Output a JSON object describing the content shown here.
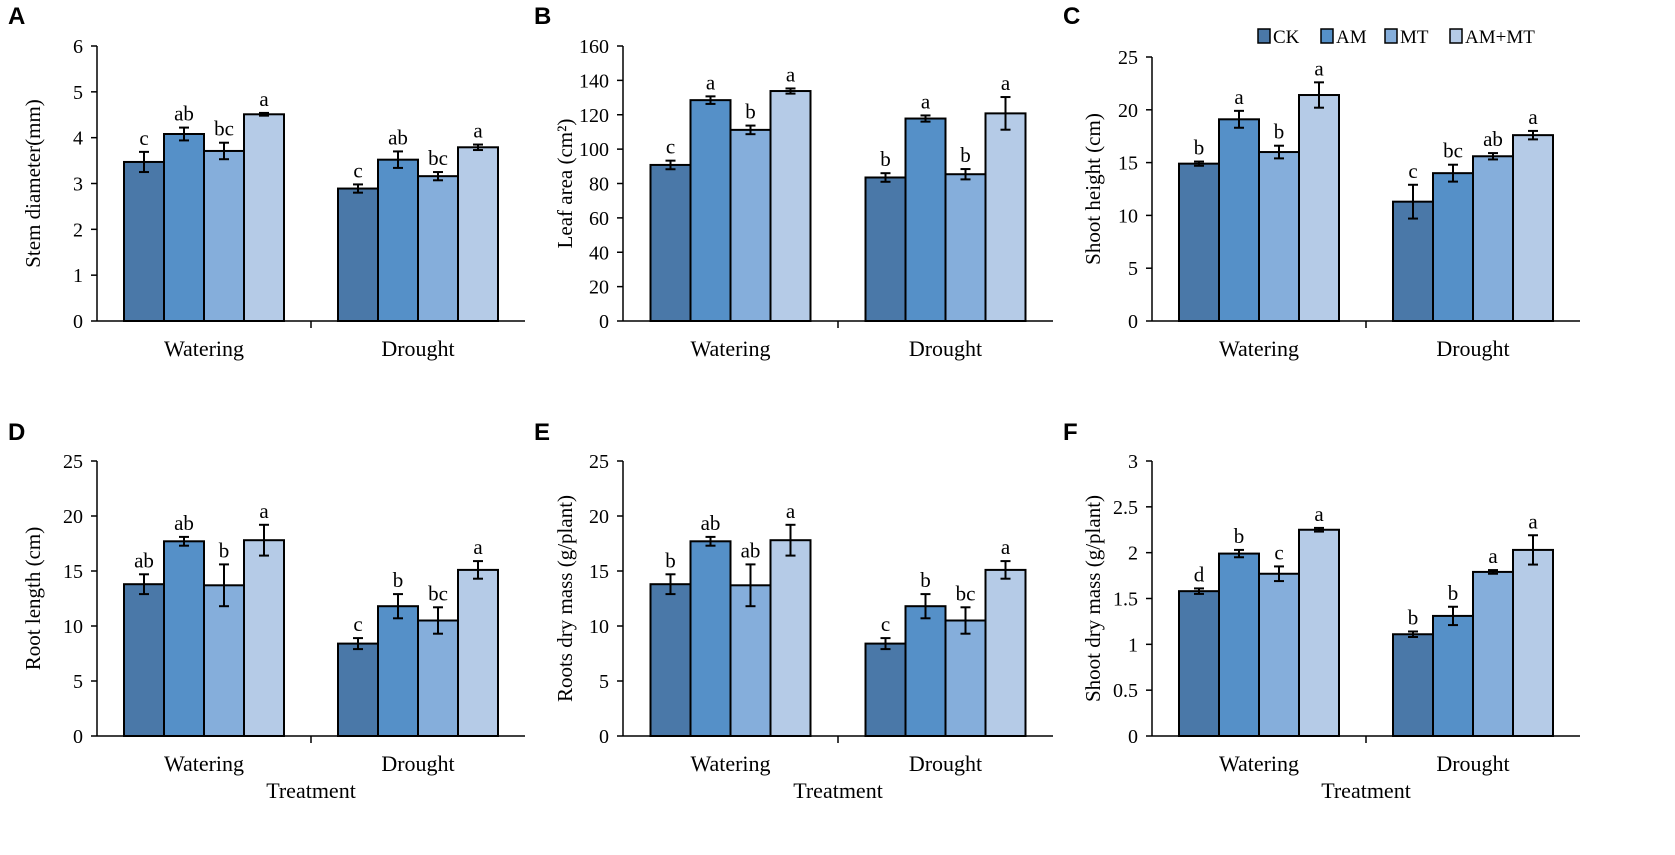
{
  "series_colors": [
    "#4a78a8",
    "#5590c8",
    "#85aedb",
    "#b5cbe7"
  ],
  "legend": {
    "items": [
      "CK",
      "AM",
      "MT",
      "AM+MT"
    ]
  },
  "chart_data": [
    {
      "type": "bar",
      "panel": "A",
      "title": "",
      "ylabel": "Stem diameter(mm)",
      "xlabel": "",
      "ylim": [
        0,
        6
      ],
      "yticks": [
        0,
        1,
        2,
        3,
        4,
        5,
        6
      ],
      "categories": [
        "Watering",
        "Drought"
      ],
      "series": [
        {
          "name": "CK",
          "values": [
            3.47,
            2.89
          ],
          "errors": [
            0.22,
            0.09
          ],
          "letters": [
            "c",
            "c"
          ]
        },
        {
          "name": "AM",
          "values": [
            4.08,
            3.52
          ],
          "errors": [
            0.14,
            0.18
          ],
          "letters": [
            "ab",
            "ab"
          ]
        },
        {
          "name": "MT",
          "values": [
            3.71,
            3.16
          ],
          "errors": [
            0.18,
            0.09
          ],
          "letters": [
            "bc",
            "bc"
          ]
        },
        {
          "name": "AM+MT",
          "values": [
            4.51,
            3.79
          ],
          "errors": [
            0.03,
            0.06
          ],
          "letters": [
            "a",
            "a"
          ]
        }
      ]
    },
    {
      "type": "bar",
      "panel": "B",
      "title": "",
      "ylabel": "Leaf area (cm²)",
      "xlabel": "",
      "ylim": [
        0,
        160
      ],
      "yticks": [
        0,
        20,
        40,
        60,
        80,
        100,
        120,
        140,
        160
      ],
      "categories": [
        "Watering",
        "Drought"
      ],
      "series": [
        {
          "name": "CK",
          "values": [
            90.8,
            83.5
          ],
          "errors": [
            2.5,
            2.5
          ],
          "letters": [
            "c",
            "b"
          ]
        },
        {
          "name": "AM",
          "values": [
            128.5,
            117.8
          ],
          "errors": [
            2.2,
            1.8
          ],
          "letters": [
            "a",
            "a"
          ]
        },
        {
          "name": "MT",
          "values": [
            111.2,
            85.4
          ],
          "errors": [
            2.5,
            3.0
          ],
          "letters": [
            "b",
            "b"
          ]
        },
        {
          "name": "AM+MT",
          "values": [
            133.8,
            120.8
          ],
          "errors": [
            1.5,
            9.5
          ],
          "letters": [
            "a",
            "a"
          ]
        }
      ]
    },
    {
      "type": "bar",
      "panel": "C",
      "title": "",
      "ylabel": "Shoot height (cm)",
      "xlabel": "",
      "ylim": [
        0,
        25
      ],
      "yticks": [
        0,
        5,
        10,
        15,
        20,
        25
      ],
      "categories": [
        "Watering",
        "Drought"
      ],
      "series": [
        {
          "name": "CK",
          "values": [
            14.9,
            11.3
          ],
          "errors": [
            0.2,
            1.6
          ],
          "letters": [
            "b",
            "c"
          ]
        },
        {
          "name": "AM",
          "values": [
            19.1,
            14.0
          ],
          "errors": [
            0.8,
            0.8
          ],
          "letters": [
            "a",
            "bc"
          ]
        },
        {
          "name": "MT",
          "values": [
            16.0,
            15.6
          ],
          "errors": [
            0.6,
            0.3
          ],
          "letters": [
            "b",
            "ab"
          ]
        },
        {
          "name": "AM+MT",
          "values": [
            21.4,
            17.6
          ],
          "errors": [
            1.2,
            0.4
          ],
          "letters": [
            "a",
            "a"
          ]
        }
      ]
    },
    {
      "type": "bar",
      "panel": "D",
      "title": "",
      "ylabel": "Root length (cm)",
      "xlabel": "Treatment",
      "ylim": [
        0,
        25
      ],
      "yticks": [
        0,
        5,
        10,
        15,
        20,
        25
      ],
      "categories": [
        "Watering",
        "Drought"
      ],
      "series": [
        {
          "name": "CK",
          "values": [
            13.8,
            8.4
          ],
          "errors": [
            0.9,
            0.5
          ],
          "letters": [
            "ab",
            "c"
          ]
        },
        {
          "name": "AM",
          "values": [
            17.7,
            11.8
          ],
          "errors": [
            0.4,
            1.1
          ],
          "letters": [
            "ab",
            "b"
          ]
        },
        {
          "name": "MT",
          "values": [
            13.7,
            10.5
          ],
          "errors": [
            1.9,
            1.2
          ],
          "letters": [
            "b",
            "bc"
          ]
        },
        {
          "name": "AM+MT",
          "values": [
            17.8,
            15.1
          ],
          "errors": [
            1.4,
            0.8
          ],
          "letters": [
            "a",
            "a"
          ]
        }
      ]
    },
    {
      "type": "bar",
      "panel": "E",
      "title": "",
      "ylabel": "Roots dry mass (g/plant)",
      "xlabel": "Treatment",
      "ylim": [
        0,
        25
      ],
      "yticks": [
        0,
        5,
        10,
        15,
        20,
        25
      ],
      "categories": [
        "Watering",
        "Drought"
      ],
      "series": [
        {
          "name": "CK",
          "values": [
            13.8,
            8.4
          ],
          "errors": [
            0.9,
            0.5
          ],
          "letters": [
            "b",
            "c"
          ]
        },
        {
          "name": "AM",
          "values": [
            17.7,
            11.8
          ],
          "errors": [
            0.4,
            1.1
          ],
          "letters": [
            "ab",
            "b"
          ]
        },
        {
          "name": "MT",
          "values": [
            13.7,
            10.5
          ],
          "errors": [
            1.9,
            1.2
          ],
          "letters": [
            "ab",
            "bc"
          ]
        },
        {
          "name": "AM+MT",
          "values": [
            17.8,
            15.1
          ],
          "errors": [
            1.4,
            0.8
          ],
          "letters": [
            "a",
            "a"
          ]
        }
      ]
    },
    {
      "type": "bar",
      "panel": "F",
      "title": "",
      "ylabel": "Shoot dry mass (g/plant)",
      "xlabel": "Treatment",
      "ylim": [
        0,
        3
      ],
      "yticks": [
        0,
        0.5,
        1,
        1.5,
        2,
        2.5,
        3
      ],
      "categories": [
        "Watering",
        "Drought"
      ],
      "series": [
        {
          "name": "CK",
          "values": [
            1.58,
            1.11
          ],
          "errors": [
            0.03,
            0.03
          ],
          "letters": [
            "d",
            "b"
          ]
        },
        {
          "name": "AM",
          "values": [
            1.99,
            1.31
          ],
          "errors": [
            0.04,
            0.1
          ],
          "letters": [
            "b",
            "b"
          ]
        },
        {
          "name": "MT",
          "values": [
            1.77,
            1.79
          ],
          "errors": [
            0.08,
            0.02
          ],
          "letters": [
            "c",
            "a"
          ]
        },
        {
          "name": "AM+MT",
          "values": [
            2.25,
            2.03
          ],
          "errors": [
            0.02,
            0.16
          ],
          "letters": [
            "a",
            "a"
          ]
        }
      ]
    }
  ]
}
